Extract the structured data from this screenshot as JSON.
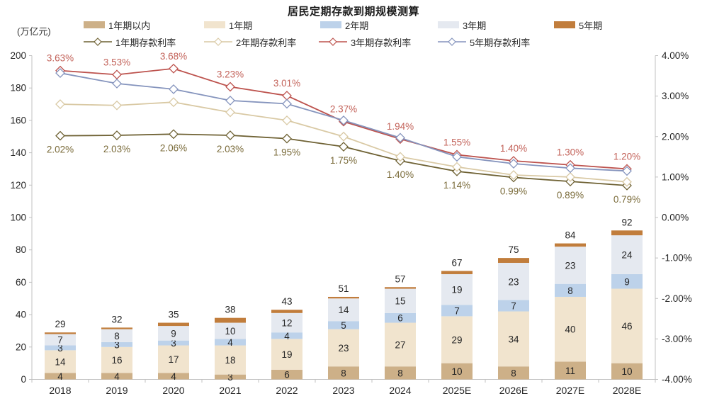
{
  "title": "居民定期存款到期规模测算",
  "left_axis_unit": "(万亿元)",
  "chart_data": {
    "type": "bar+line",
    "title": "居民定期存款到期规模测算",
    "categories": [
      "2018",
      "2019",
      "2020",
      "2021",
      "2022",
      "2023",
      "2024",
      "2025E",
      "2026E",
      "2027E",
      "2028E"
    ],
    "bar_totals": [
      29,
      32,
      35,
      38,
      43,
      51,
      57,
      67,
      75,
      84,
      92
    ],
    "bar_series": [
      {
        "name": "1年期以内",
        "color": "#cdb088",
        "values": [
          4,
          4,
          4,
          3,
          6,
          8,
          8,
          10,
          8,
          11,
          10
        ],
        "show_labels": true
      },
      {
        "name": "1年期",
        "color": "#f1e4ce",
        "values": [
          14,
          16,
          17,
          18,
          19,
          23,
          27,
          29,
          34,
          40,
          46
        ],
        "show_labels": true
      },
      {
        "name": "2年期",
        "color": "#bdd2ea",
        "values": [
          3,
          3,
          3,
          4,
          4,
          5,
          6,
          7,
          7,
          8,
          9
        ],
        "show_labels": true
      },
      {
        "name": "3年期",
        "color": "#e5e9f0",
        "values": [
          7,
          8,
          9,
          10,
          12,
          14,
          15,
          19,
          23,
          23,
          24
        ],
        "show_labels": true
      },
      {
        "name": "5年期",
        "color": "#c17d3c",
        "values": [
          1,
          1,
          2,
          3,
          2,
          1,
          1,
          2,
          3,
          2,
          3
        ],
        "show_labels": false
      }
    ],
    "line_series": [
      {
        "name": "1年期存款利率",
        "color": "#6f6234",
        "label_color": "#7b6c3b",
        "label_position": "below",
        "values": [
          2.02,
          2.03,
          2.06,
          2.03,
          1.95,
          1.75,
          1.4,
          1.14,
          0.99,
          0.89,
          0.79
        ],
        "labels": [
          "2.02%",
          "2.03%",
          "2.06%",
          "2.03%",
          "1.95%",
          "1.75%",
          "1.40%",
          "1.14%",
          "0.99%",
          "0.89%",
          "0.79%"
        ]
      },
      {
        "name": "2年期存款利率",
        "color": "#d9c9a4",
        "values": [
          2.8,
          2.77,
          2.85,
          2.6,
          2.4,
          2.0,
          1.5,
          1.25,
          1.05,
          1.0,
          0.88
        ]
      },
      {
        "name": "3年期存款利率",
        "color": "#bd534e",
        "label_color": "#c3635a",
        "label_position": "above",
        "values": [
          3.63,
          3.53,
          3.68,
          3.23,
          3.01,
          2.37,
          1.94,
          1.55,
          1.4,
          1.3,
          1.2
        ],
        "labels": [
          "3.63%",
          "3.53%",
          "3.68%",
          "3.23%",
          "3.01%",
          "2.37%",
          "1.94%",
          "1.55%",
          "1.40%",
          "1.30%",
          "1.20%"
        ]
      },
      {
        "name": "5年期存款利率",
        "color": "#8594bd",
        "values": [
          3.57,
          3.31,
          3.17,
          2.89,
          2.81,
          2.4,
          1.97,
          1.5,
          1.33,
          1.22,
          1.15
        ]
      }
    ],
    "left_axis": {
      "min": 0,
      "max": 200,
      "values": [
        0,
        20,
        40,
        60,
        80,
        100,
        120,
        140,
        160,
        180,
        200
      ],
      "labels": [
        "0",
        "20",
        "40",
        "60",
        "80",
        "100",
        "120",
        "140",
        "160",
        "180",
        "200"
      ]
    },
    "right_axis": {
      "min": -4,
      "max": 4,
      "values": [
        4,
        3,
        2,
        1,
        0,
        -1,
        -2,
        -3,
        -4
      ],
      "labels": [
        "4.00%",
        "3.00%",
        "2.00%",
        "1.00%",
        "0.00%",
        "-1.00%",
        "-2.00%",
        "-3.00%",
        "-4.00%"
      ]
    },
    "grid": false,
    "legend_position": "top"
  }
}
